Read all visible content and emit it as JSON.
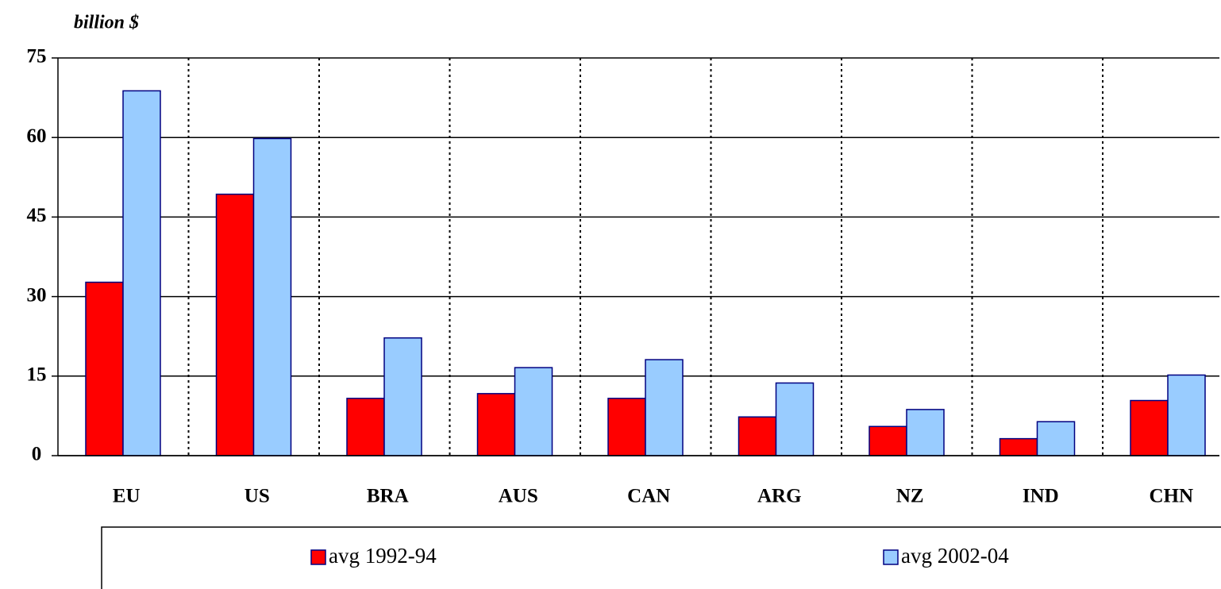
{
  "chart_data": {
    "type": "bar",
    "y_label": "billion $",
    "categories": [
      "EU",
      "US",
      "BRA",
      "AUS",
      "CAN",
      "ARG",
      "NZ",
      "IND",
      "CHN"
    ],
    "series": [
      {
        "name": "avg 1992-94",
        "color": "#ff0000",
        "values": [
          32.7,
          49.3,
          10.8,
          11.7,
          10.8,
          7.3,
          5.5,
          3.2,
          10.4
        ]
      },
      {
        "name": "avg 2002-04",
        "color": "#99ccff",
        "values": [
          68.8,
          59.8,
          22.2,
          16.6,
          18.1,
          13.7,
          8.7,
          6.4,
          15.2
        ]
      }
    ],
    "ylim": [
      0,
      75
    ],
    "yticks": [
      0,
      15,
      30,
      45,
      60,
      75
    ],
    "grid": true
  }
}
